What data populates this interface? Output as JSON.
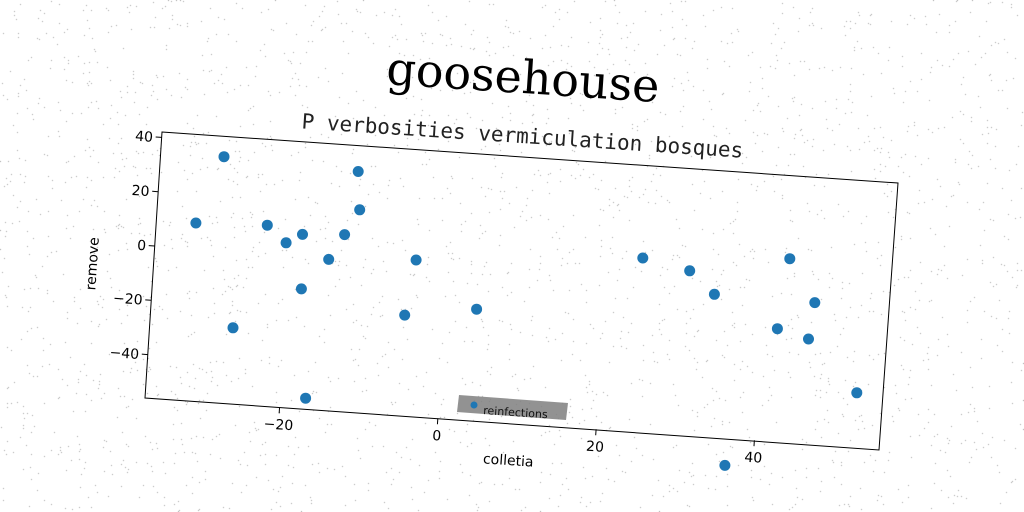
{
  "chart_data": {
    "type": "scatter",
    "title": "goosehouse",
    "subtitle": "P verbosities vermiculation bosques",
    "xlabel": "colletia",
    "ylabel": "remove",
    "xlim": [
      -37,
      56
    ],
    "ylim": [
      -56,
      42
    ],
    "xticks": [
      -20,
      0,
      20,
      40
    ],
    "yticks": [
      -40,
      -20,
      0,
      20,
      40
    ],
    "grid": false,
    "legend": "lower-center",
    "colors": {
      "series": "#1f77b4",
      "legend_bg": "#7f7f7f"
    },
    "series": [
      {
        "name": "reinfections",
        "x": [
          -32,
          -29,
          -26.5,
          -23,
          -20.5,
          -18.5,
          -18.2,
          -16.8,
          -15,
          -13.2,
          -12,
          -11.5,
          -5,
          -4,
          4,
          24.5,
          30.5,
          33.8,
          36.5,
          42,
          43,
          46,
          46.5,
          52.5
        ],
        "y": [
          9.5,
          34.5,
          -28,
          10.5,
          4.5,
          8,
          -12,
          -52,
          -0.5,
          9,
          32.5,
          18.5,
          -19,
          1.5,
          -15,
          8,
          4.5,
          -3.5,
          -66,
          -14.5,
          11.5,
          -17.5,
          -4,
          -36
        ]
      }
    ]
  }
}
